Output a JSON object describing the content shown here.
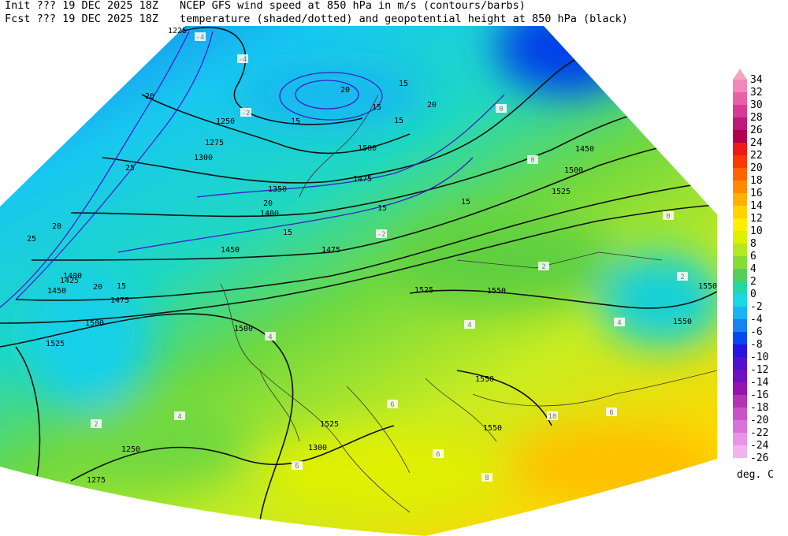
{
  "header": {
    "init": "Init  ??? 19 DEC 2025 18Z",
    "fcst": "Fcst ??? 19 DEC 2025 18Z",
    "line1": "NCEP GFS wind speed at 850 hPa in m/s (contours/barbs)",
    "line2": "temperature (shaded/dotted) and geopotential height at 850 hPa (black)"
  },
  "colorbar": {
    "levels": [
      34,
      32,
      30,
      28,
      26,
      24,
      22,
      20,
      18,
      16,
      14,
      12,
      10,
      8,
      6,
      4,
      2,
      0,
      -2,
      -4,
      -6,
      -8,
      -10,
      -12,
      -14,
      -16,
      -18,
      -20,
      -22,
      -24,
      -26
    ],
    "colors": [
      "#f4a8bc",
      "#f088b8",
      "#e860a8",
      "#d83898",
      "#c01878",
      "#b00050",
      "#f01818",
      "#ff3800",
      "#ff6400",
      "#ff8c00",
      "#ffb000",
      "#ffd400",
      "#fff000",
      "#dcf000",
      "#b4e820",
      "#84dc34",
      "#54d058",
      "#24d8a4",
      "#18d8e4",
      "#18b4f4",
      "#1484f0",
      "#0448f0",
      "#2814e0",
      "#5010d0",
      "#7010c0",
      "#9414b0",
      "#b434b4",
      "#c854c8",
      "#d874d8",
      "#e894e8",
      "#f0b4f0"
    ],
    "unit": "deg. C"
  },
  "height_labels": [
    1225,
    1250,
    1275,
    1300,
    1350,
    1400,
    1400,
    1425,
    1450,
    1450,
    1475,
    1475,
    1475,
    1500,
    1500,
    1500,
    1500,
    1525,
    1525,
    1525,
    1525,
    1550,
    1550,
    1550,
    1550,
    1550,
    1250,
    1275,
    1300,
    1450
  ],
  "wind_labels": [
    20,
    20,
    15,
    15,
    20,
    15,
    25,
    20,
    15,
    15,
    20,
    15,
    25,
    20,
    15,
    15
  ],
  "temperature_labels": [
    -4,
    -4,
    -2,
    0,
    0,
    0,
    2,
    2,
    4,
    4,
    4,
    6,
    6,
    6,
    8,
    10,
    2,
    4,
    -2,
    6
  ]
}
